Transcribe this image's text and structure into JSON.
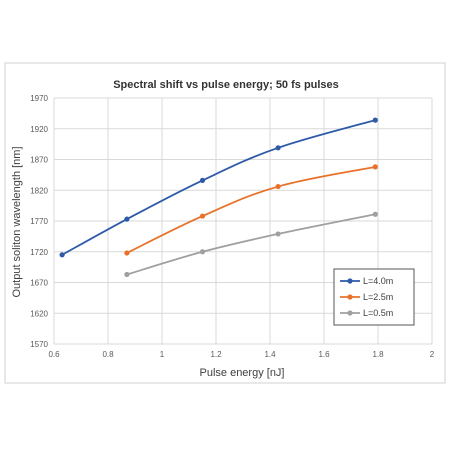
{
  "chart_data": {
    "type": "line",
    "title": "Spectral shift vs pulse energy; 50 fs pulses",
    "xlabel": "Pulse energy [nJ]",
    "ylabel": "Output soliton wavelength [nm]",
    "xlim": [
      0.6,
      2
    ],
    "ylim": [
      1570,
      1970
    ],
    "xticks": [
      "0.6",
      "0.8",
      "1",
      "1.2",
      "1.4",
      "1.6",
      "1.8",
      "2"
    ],
    "yticks": [
      "1570",
      "1620",
      "1670",
      "1720",
      "1770",
      "1820",
      "1870",
      "1920",
      "1970"
    ],
    "grid": true,
    "legend_position": "bottom-right",
    "series": [
      {
        "name": "L=4.0m",
        "color": "#2e5aa8",
        "x": [
          0.63,
          0.87,
          1.15,
          1.43,
          1.79
        ],
        "y": [
          1715,
          1773,
          1836,
          1889,
          1934
        ]
      },
      {
        "name": "L=2.5m",
        "color": "#e8722a",
        "x": [
          0.87,
          1.15,
          1.43,
          1.79
        ],
        "y": [
          1718,
          1778,
          1826,
          1858
        ]
      },
      {
        "name": "L=0.5m",
        "color": "#a0a0a0",
        "x": [
          0.87,
          1.15,
          1.43,
          1.79
        ],
        "y": [
          1683,
          1720,
          1749,
          1781
        ]
      }
    ]
  }
}
